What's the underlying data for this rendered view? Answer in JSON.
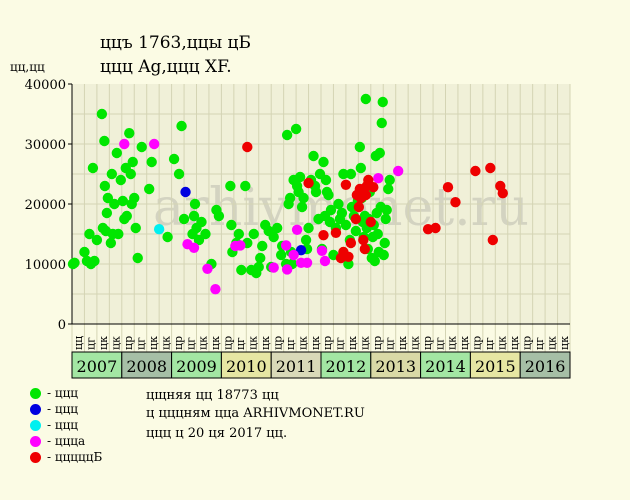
{
  "header": {
    "title_line1": "ццъ 1763,ццы цБ",
    "title_line2": "ццц Ag,ццц XF.",
    "y_unit": "цц,цц"
  },
  "colors": {
    "background": "#fbfbe4",
    "plot_background": "#f0f0d8",
    "grid": "#d4d4b4",
    "green": "#00e600",
    "blue": "#0000e0",
    "cyan": "#00f0f0",
    "magenta": "#ff00ff",
    "red": "#ee0000"
  },
  "legend": [
    {
      "label": "- ццц",
      "color": "#00e600"
    },
    {
      "label": "- ццц",
      "color": "#0000e0"
    },
    {
      "label": "- ццц",
      "color": "#00f0f0"
    },
    {
      "label": "- ццца",
      "color": "#ff00ff"
    },
    {
      "label": "- цццццБ",
      "color": "#ee0000"
    }
  ],
  "footer": {
    "line1": "цщняя цц 18773 цц",
    "line2": "ц цццням цца ARHIVMONET.RU",
    "line3": "ццц ц 20 ця 2017 цц."
  },
  "watermark": "arhivmonet.ru",
  "chart_data": {
    "type": "scatter",
    "ylim": [
      0,
      40000
    ],
    "y_ticks": [
      "0",
      "10000",
      "20000",
      "30000",
      "40000"
    ],
    "x_range": [
      2007.0,
      2017.0
    ],
    "quarter_labels": [
      "цц",
      "цг",
      "цк",
      "цк"
    ],
    "quarter_labels_full": [
      "цц",
      "цг",
      "цк",
      "цк",
      "цр",
      "цг",
      "цк",
      "цк",
      "цр",
      "цг",
      "цк",
      "цк",
      "цр",
      "цг",
      "цк",
      "цк",
      "цр",
      "цг",
      "цк",
      "цк",
      "цр",
      "цг",
      "цк",
      "цк",
      "цр",
      "цг",
      "цк",
      "цк",
      "цр",
      "цг",
      "цк",
      "цк",
      "цр",
      "цг",
      "цк",
      "цк",
      "цр",
      "цг",
      "цк",
      "цк"
    ],
    "years": [
      {
        "label": "2007",
        "color": "#a3e6a3"
      },
      {
        "label": "2008",
        "color": "#a6bfa6"
      },
      {
        "label": "2009",
        "color": "#a3e6a3"
      },
      {
        "label": "2010",
        "color": "#e6e6a3"
      },
      {
        "label": "2011",
        "color": "#d9d9b8"
      },
      {
        "label": "2012",
        "color": "#a3e6a3"
      },
      {
        "label": "2013",
        "color": "#d9d9a6"
      },
      {
        "label": "2014",
        "color": "#a3e6a3"
      },
      {
        "label": "2015",
        "color": "#e6e6a3"
      },
      {
        "label": "2016",
        "color": "#a6bfa6"
      }
    ],
    "series": [
      {
        "name": "ццц",
        "color": "#00e600",
        "points": [
          [
            2007.02,
            10000
          ],
          [
            2007.05,
            10200
          ],
          [
            2007.25,
            12000
          ],
          [
            2007.3,
            10500
          ],
          [
            2007.35,
            15000
          ],
          [
            2007.38,
            10000
          ],
          [
            2007.42,
            26000
          ],
          [
            2007.45,
            10500
          ],
          [
            2007.5,
            14000
          ],
          [
            2007.6,
            35000
          ],
          [
            2007.62,
            16000
          ],
          [
            2007.65,
            30500
          ],
          [
            2007.66,
            23000
          ],
          [
            2007.68,
            15500
          ],
          [
            2007.7,
            18500
          ],
          [
            2007.72,
            21000
          ],
          [
            2007.78,
            13500
          ],
          [
            2007.8,
            25000
          ],
          [
            2007.82,
            15000
          ],
          [
            2007.85,
            20000
          ],
          [
            2007.9,
            28500
          ],
          [
            2007.93,
            15000
          ],
          [
            2007.98,
            24000
          ],
          [
            2008.02,
            20500
          ],
          [
            2008.05,
            17500
          ],
          [
            2008.08,
            26000
          ],
          [
            2008.1,
            18000
          ],
          [
            2008.15,
            31800
          ],
          [
            2008.18,
            25000
          ],
          [
            2008.2,
            20000
          ],
          [
            2008.22,
            27000
          ],
          [
            2008.25,
            21000
          ],
          [
            2008.28,
            16000
          ],
          [
            2008.32,
            11000
          ],
          [
            2008.4,
            29500
          ],
          [
            2008.55,
            22500
          ],
          [
            2008.6,
            27000
          ],
          [
            2008.92,
            14500
          ],
          [
            2009.05,
            27500
          ],
          [
            2009.15,
            25000
          ],
          [
            2009.2,
            33000
          ],
          [
            2009.25,
            17500
          ],
          [
            2009.42,
            15000
          ],
          [
            2009.45,
            18000
          ],
          [
            2009.47,
            20000
          ],
          [
            2009.5,
            16000
          ],
          [
            2009.55,
            14000
          ],
          [
            2009.6,
            17000
          ],
          [
            2009.68,
            15000
          ],
          [
            2009.8,
            10000
          ],
          [
            2009.9,
            19000
          ],
          [
            2009.95,
            18000
          ],
          [
            2010.18,
            23000
          ],
          [
            2010.2,
            16500
          ],
          [
            2010.22,
            12000
          ],
          [
            2010.3,
            13500
          ],
          [
            2010.35,
            15000
          ],
          [
            2010.4,
            9000
          ],
          [
            2010.48,
            23000
          ],
          [
            2010.52,
            13500
          ],
          [
            2010.6,
            9000
          ],
          [
            2010.65,
            15000
          ],
          [
            2010.7,
            8500
          ],
          [
            2010.75,
            9500
          ],
          [
            2010.78,
            11000
          ],
          [
            2010.82,
            13000
          ],
          [
            2010.88,
            16500
          ],
          [
            2010.95,
            15500
          ],
          [
            2011.0,
            9500
          ],
          [
            2011.05,
            14500
          ],
          [
            2011.12,
            16000
          ],
          [
            2011.2,
            11500
          ],
          [
            2011.22,
            13000
          ],
          [
            2011.3,
            10000
          ],
          [
            2011.32,
            31500
          ],
          [
            2011.35,
            20000
          ],
          [
            2011.38,
            21000
          ],
          [
            2011.4,
            12000
          ],
          [
            2011.42,
            10000
          ],
          [
            2011.45,
            24000
          ],
          [
            2011.5,
            32500
          ],
          [
            2011.52,
            23000
          ],
          [
            2011.55,
            22000
          ],
          [
            2011.58,
            24500
          ],
          [
            2011.62,
            19500
          ],
          [
            2011.65,
            21000
          ],
          [
            2011.7,
            14000
          ],
          [
            2011.72,
            12500
          ],
          [
            2011.75,
            16000
          ],
          [
            2011.8,
            24000
          ],
          [
            2011.85,
            28000
          ],
          [
            2011.88,
            23000
          ],
          [
            2011.9,
            22000
          ],
          [
            2011.95,
            17500
          ],
          [
            2011.98,
            25000
          ],
          [
            2012.02,
            12500
          ],
          [
            2012.05,
            27000
          ],
          [
            2012.08,
            18000
          ],
          [
            2012.1,
            24000
          ],
          [
            2012.12,
            22000
          ],
          [
            2012.15,
            21500
          ],
          [
            2012.18,
            17000
          ],
          [
            2012.2,
            19000
          ],
          [
            2012.25,
            11500
          ],
          [
            2012.3,
            16000
          ],
          [
            2012.35,
            20000
          ],
          [
            2012.38,
            17500
          ],
          [
            2012.42,
            18500
          ],
          [
            2012.45,
            25000
          ],
          [
            2012.5,
            16500
          ],
          [
            2012.52,
            11000
          ],
          [
            2012.55,
            10000
          ],
          [
            2012.58,
            14000
          ],
          [
            2012.6,
            25000
          ],
          [
            2012.62,
            19500
          ],
          [
            2012.66,
            18000
          ],
          [
            2012.7,
            15500
          ],
          [
            2012.74,
            20500
          ],
          [
            2012.78,
            29500
          ],
          [
            2012.8,
            26000
          ],
          [
            2012.82,
            21000
          ],
          [
            2012.84,
            17000
          ],
          [
            2012.86,
            14500
          ],
          [
            2012.88,
            18000
          ],
          [
            2012.9,
            37500
          ],
          [
            2012.92,
            16000
          ],
          [
            2012.94,
            12500
          ],
          [
            2012.96,
            17500
          ],
          [
            2012.98,
            22000
          ],
          [
            2013.02,
            11000
          ],
          [
            2013.04,
            14500
          ],
          [
            2013.06,
            16500
          ],
          [
            2013.08,
            10500
          ],
          [
            2013.1,
            28000
          ],
          [
            2013.12,
            18500
          ],
          [
            2013.14,
            15000
          ],
          [
            2013.16,
            12000
          ],
          [
            2013.18,
            28500
          ],
          [
            2013.2,
            19500
          ],
          [
            2013.22,
            33500
          ],
          [
            2013.24,
            37000
          ],
          [
            2013.26,
            11500
          ],
          [
            2013.28,
            13500
          ],
          [
            2013.3,
            17500
          ],
          [
            2013.32,
            19000
          ],
          [
            2013.35,
            22500
          ],
          [
            2013.38,
            24000
          ]
        ]
      },
      {
        "name": "ццц",
        "color": "#0000e0",
        "points": [
          [
            2009.28,
            22000
          ],
          [
            2011.6,
            12300
          ]
        ]
      },
      {
        "name": "ццц",
        "color": "#00f0f0",
        "points": [
          [
            2008.75,
            15800
          ]
        ]
      },
      {
        "name": "ццца",
        "color": "#ff00ff",
        "points": [
          [
            2008.05,
            30000
          ],
          [
            2008.65,
            30000
          ],
          [
            2009.32,
            13300
          ],
          [
            2009.45,
            12700
          ],
          [
            2009.72,
            9200
          ],
          [
            2009.88,
            5800
          ],
          [
            2010.28,
            13000
          ],
          [
            2010.38,
            13100
          ],
          [
            2011.05,
            9400
          ],
          [
            2011.3,
            13100
          ],
          [
            2011.32,
            9100
          ],
          [
            2011.45,
            11500
          ],
          [
            2011.52,
            15700
          ],
          [
            2011.6,
            10200
          ],
          [
            2011.72,
            10200
          ],
          [
            2012.02,
            12200
          ],
          [
            2012.08,
            10500
          ],
          [
            2013.15,
            24300
          ],
          [
            2013.55,
            25500
          ]
        ]
      },
      {
        "name": "цццццБ",
        "color": "#ee0000",
        "points": [
          [
            2010.52,
            29500
          ],
          [
            2011.75,
            23500
          ],
          [
            2012.05,
            14800
          ],
          [
            2012.3,
            15200
          ],
          [
            2012.4,
            11000
          ],
          [
            2012.45,
            12000
          ],
          [
            2012.5,
            23200
          ],
          [
            2012.55,
            11200
          ],
          [
            2012.6,
            13500
          ],
          [
            2012.7,
            17500
          ],
          [
            2012.72,
            21500
          ],
          [
            2012.76,
            19500
          ],
          [
            2012.78,
            22500
          ],
          [
            2012.8,
            21000
          ],
          [
            2012.85,
            14000
          ],
          [
            2012.88,
            12500
          ],
          [
            2012.9,
            21500
          ],
          [
            2012.92,
            23000
          ],
          [
            2012.95,
            24000
          ],
          [
            2013.0,
            17000
          ],
          [
            2013.05,
            22800
          ],
          [
            2014.15,
            15800
          ],
          [
            2014.3,
            16000
          ],
          [
            2014.55,
            22800
          ],
          [
            2014.7,
            20300
          ],
          [
            2015.1,
            25500
          ],
          [
            2015.4,
            26000
          ],
          [
            2015.45,
            14000
          ],
          [
            2015.6,
            23000
          ],
          [
            2015.65,
            21800
          ]
        ]
      }
    ]
  }
}
